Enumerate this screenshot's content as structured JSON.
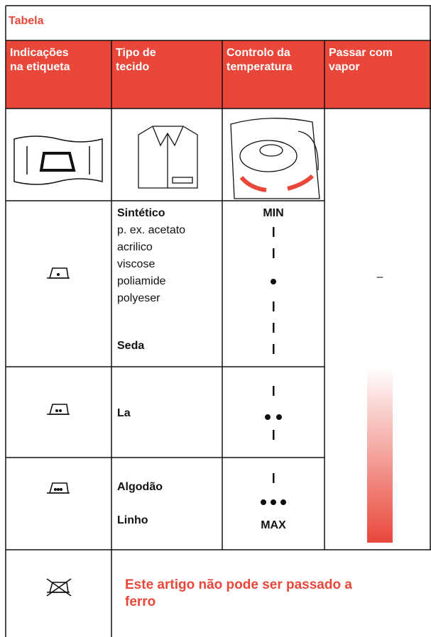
{
  "title": "Tabela",
  "table": {
    "header": [
      [
        "Indicações",
        "na etiqueta"
      ],
      [
        "Tipo de",
        "tecido"
      ],
      [
        "Controlo da",
        "temperatura"
      ],
      [
        "Passar com",
        "vapor"
      ]
    ],
    "rows": [
      {
        "fabric": [
          "Sintético",
          "p. ex. acetato",
          "acrilico",
          "viscose",
          "poliamide",
          "polyeser",
          "Seda"
        ],
        "temperature": "MIN",
        "steam": "–"
      },
      {
        "fabric": [
          "La"
        ]
      },
      {
        "fabric": [
          "Algodão",
          "Linho"
        ],
        "temperature": "MAX"
      }
    ],
    "notice": [
      "Este artigo não pode ser passado a",
      "ferro"
    ]
  }
}
